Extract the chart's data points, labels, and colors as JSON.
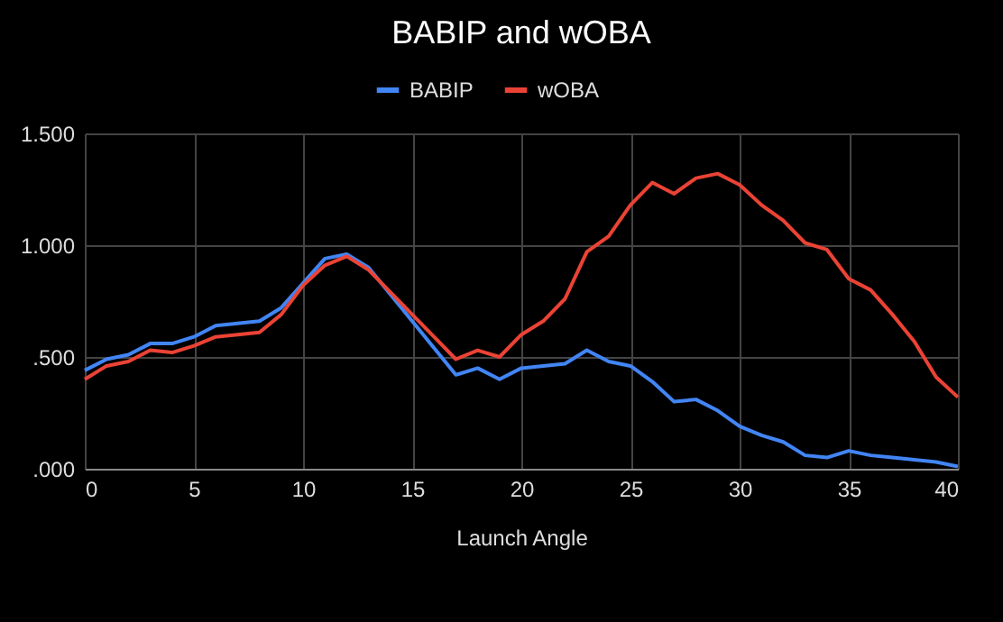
{
  "chart_data": {
    "type": "line",
    "title": "BABIP and wOBA",
    "xlabel": "Launch Angle",
    "x": [
      0,
      1,
      2,
      3,
      4,
      5,
      6,
      7,
      8,
      9,
      10,
      11,
      12,
      13,
      14,
      15,
      16,
      17,
      18,
      19,
      20,
      21,
      22,
      23,
      24,
      25,
      26,
      27,
      28,
      29,
      30,
      31,
      32,
      33,
      34,
      35,
      36,
      37,
      38,
      39,
      40
    ],
    "series": [
      {
        "name": "BABIP",
        "color": "#4285f4",
        "values": [
          0.44,
          0.49,
          0.51,
          0.56,
          0.56,
          0.59,
          0.64,
          0.65,
          0.66,
          0.72,
          0.83,
          0.94,
          0.96,
          0.9,
          0.78,
          0.66,
          0.54,
          0.42,
          0.45,
          0.4,
          0.45,
          0.46,
          0.47,
          0.53,
          0.48,
          0.46,
          0.39,
          0.3,
          0.31,
          0.26,
          0.19,
          0.15,
          0.12,
          0.06,
          0.05,
          0.08,
          0.06,
          0.05,
          0.04,
          0.03,
          0.01
        ]
      },
      {
        "name": "wOBA",
        "color": "#ea4335",
        "values": [
          0.4,
          0.46,
          0.48,
          0.53,
          0.52,
          0.55,
          0.59,
          0.6,
          0.61,
          0.69,
          0.82,
          0.91,
          0.95,
          0.89,
          0.79,
          0.69,
          0.59,
          0.49,
          0.53,
          0.5,
          0.6,
          0.66,
          0.76,
          0.97,
          1.04,
          1.18,
          1.28,
          1.23,
          1.3,
          1.32,
          1.27,
          1.18,
          1.11,
          1.01,
          0.98,
          0.85,
          0.8,
          0.69,
          0.57,
          0.41,
          0.32
        ]
      }
    ],
    "xlim": [
      0,
      40
    ],
    "xticks": [
      0,
      5,
      10,
      15,
      20,
      25,
      30,
      35,
      40
    ],
    "ylim": [
      0,
      1.5
    ],
    "yticks": [
      {
        "value": 0,
        "label": ".000"
      },
      {
        "value": 0.5,
        "label": ".500"
      },
      {
        "value": 1,
        "label": "1.000"
      },
      {
        "value": 1.5,
        "label": "1.500"
      }
    ],
    "grid": true,
    "legend": "top",
    "marker": "none",
    "line_style": "solid"
  }
}
